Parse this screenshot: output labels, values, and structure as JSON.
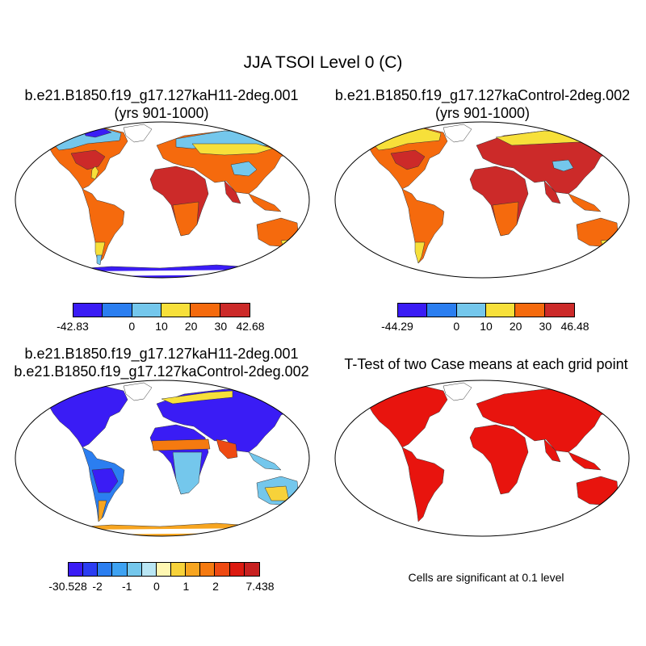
{
  "main_title": "JJA TSOI Level 0 (C)",
  "panels": [
    {
      "title_line1": "b.e21.B1850.f19_g17.127kaH11-2deg.001",
      "title_line2": "(yrs 901-1000)",
      "colorbar": {
        "colors": [
          "#3a1cf5",
          "#2b7ef0",
          "#74c7ec",
          "#f7e03a",
          "#f56a0d",
          "#cc2a29"
        ],
        "labels": [
          "-42.83",
          "0",
          "10",
          "20",
          "30",
          "42.68"
        ]
      }
    },
    {
      "title_line1": "b.e21.B1850.f19_g17.127kaControl-2deg.002",
      "title_line2": "(yrs 901-1000)",
      "colorbar": {
        "colors": [
          "#3a1cf5",
          "#2b7ef0",
          "#74c7ec",
          "#f7e03a",
          "#f56a0d",
          "#cc2a29"
        ],
        "labels": [
          "-44.29",
          "0",
          "10",
          "20",
          "30",
          "46.48"
        ]
      }
    },
    {
      "title_line1": "b.e21.B1850.f19_g17.127kaH11-2deg.001",
      "title_line2": "b.e21.B1850.f19_g17.127kaControl-2deg.002",
      "colorbar": {
        "colors": [
          "#3a1cf5",
          "#2b3df2",
          "#2b7ef0",
          "#3ea2f2",
          "#74c7ec",
          "#b9e6f4",
          "#fff7b2",
          "#f7d23a",
          "#f7a520",
          "#f57a10",
          "#ee4a12",
          "#dc1a10",
          "#c82020"
        ],
        "labels": [
          "-30.528",
          "-2",
          "-1",
          "0",
          "1",
          "2",
          "7.438"
        ]
      }
    },
    {
      "title_line1": "T-Test of two Case means at each grid point",
      "note": "Cells are significant at 0.1 level"
    }
  ]
}
